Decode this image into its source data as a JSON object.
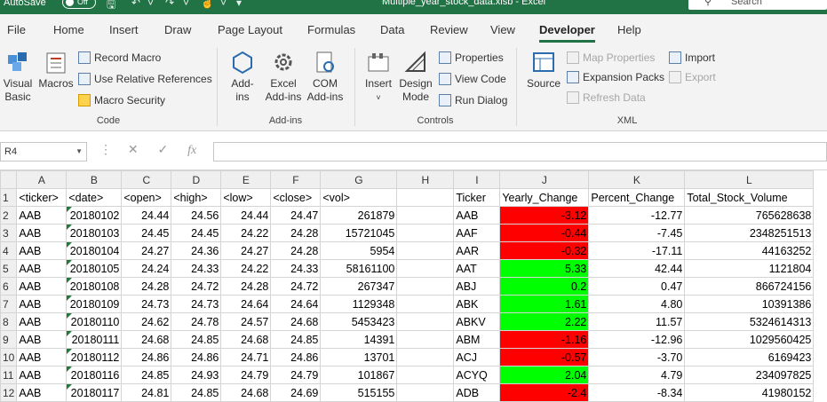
{
  "titlebar": {
    "autosave_label": "AutoSave",
    "autosave_state": "Off",
    "filename": "Multiple_year_stock_data.xlsb  -  Excel",
    "search_placeholder": "Search"
  },
  "tabs": [
    "File",
    "Home",
    "Insert",
    "Draw",
    "Page Layout",
    "Formulas",
    "Data",
    "Review",
    "View",
    "Developer",
    "Help"
  ],
  "active_tab": "Developer",
  "ribbon": {
    "code": {
      "label": "Code",
      "visual_basic": [
        "Visual",
        "Basic"
      ],
      "macros": "Macros",
      "record_macro": "Record Macro",
      "relative_refs": "Use Relative References",
      "macro_security": "Macro Security"
    },
    "addins": {
      "label": "Add-ins",
      "addins_btn": [
        "Add-",
        "ins"
      ],
      "excel_addins": [
        "Excel",
        "Add-ins"
      ],
      "com_addins": [
        "COM",
        "Add-ins"
      ]
    },
    "controls": {
      "label": "Controls",
      "insert": "Insert",
      "design_mode": [
        "Design",
        "Mode"
      ],
      "properties": "Properties",
      "view_code": "View Code",
      "run_dialog": "Run Dialog"
    },
    "xml": {
      "label": "XML",
      "source": "Source",
      "map_properties": "Map Properties",
      "expansion_packs": "Expansion Packs",
      "refresh_data": "Refresh Data",
      "import": "Import",
      "export": "Export"
    }
  },
  "formula_bar": {
    "name_box": "R4",
    "formula": ""
  },
  "sheet": {
    "columns": [
      "A",
      "B",
      "C",
      "D",
      "E",
      "F",
      "G",
      "H",
      "I",
      "J",
      "K",
      "L"
    ],
    "header_row": [
      "<ticker>",
      "<date>",
      "<open>",
      "<high>",
      "<low>",
      "<close>",
      "<vol>",
      "",
      "Ticker",
      "Yearly_Change",
      "Percent_Change",
      "Total_Stock_Volume"
    ],
    "rows": [
      [
        "AAB",
        "20180102",
        "24.44",
        "24.56",
        "24.44",
        "24.47",
        "261879",
        "",
        "AAB",
        "-3.12",
        "-12.77",
        "765628638"
      ],
      [
        "AAB",
        "20180103",
        "24.45",
        "24.45",
        "24.22",
        "24.28",
        "15721045",
        "",
        "AAF",
        "-0.44",
        "-7.45",
        "2348251513"
      ],
      [
        "AAB",
        "20180104",
        "24.27",
        "24.36",
        "24.27",
        "24.28",
        "5954",
        "",
        "AAR",
        "-0.32",
        "-17.11",
        "44163252"
      ],
      [
        "AAB",
        "20180105",
        "24.24",
        "24.33",
        "24.22",
        "24.33",
        "58161100",
        "",
        "AAT",
        "5.33",
        "42.44",
        "1121804"
      ],
      [
        "AAB",
        "20180108",
        "24.28",
        "24.72",
        "24.28",
        "24.72",
        "267347",
        "",
        "ABJ",
        "0.2",
        "0.47",
        "866724156"
      ],
      [
        "AAB",
        "20180109",
        "24.73",
        "24.73",
        "24.64",
        "24.64",
        "1129348",
        "",
        "ABK",
        "1.61",
        "4.80",
        "10391386"
      ],
      [
        "AAB",
        "20180110",
        "24.62",
        "24.78",
        "24.57",
        "24.68",
        "5453423",
        "",
        "ABKV",
        "2.22",
        "11.57",
        "5324614313"
      ],
      [
        "AAB",
        "20180111",
        "24.68",
        "24.85",
        "24.68",
        "24.85",
        "14391",
        "",
        "ABM",
        "-1.16",
        "-12.96",
        "1029560425"
      ],
      [
        "AAB",
        "20180112",
        "24.86",
        "24.86",
        "24.71",
        "24.86",
        "13701",
        "",
        "ACJ",
        "-0.57",
        "-3.70",
        "6169423"
      ],
      [
        "AAB",
        "20180116",
        "24.85",
        "24.93",
        "24.79",
        "24.79",
        "101867",
        "",
        "ACYQ",
        "2.04",
        "4.79",
        "234097825"
      ],
      [
        "AAB",
        "20180117",
        "24.81",
        "24.85",
        "24.68",
        "24.69",
        "515155",
        "",
        "ADB",
        "-2.4",
        "-8.34",
        "41980152"
      ]
    ],
    "colors": {
      "negative": "#ff0000",
      "positive": "#00ff00"
    }
  }
}
